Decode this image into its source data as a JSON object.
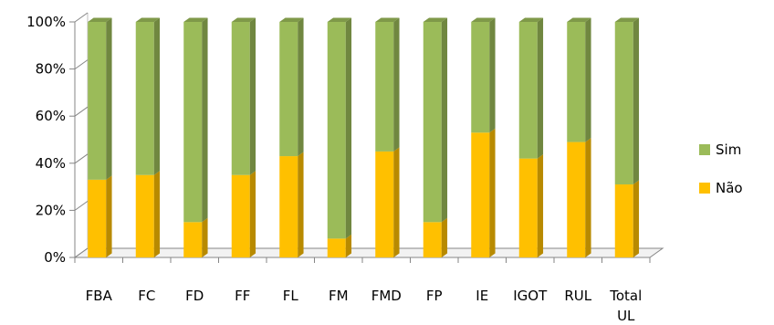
{
  "chart_data": {
    "type": "bar",
    "stacked": true,
    "percent": true,
    "style": "3d-column",
    "categories": [
      "FBA",
      "FC",
      "FD",
      "FF",
      "FL",
      "FM",
      "FMD",
      "FP",
      "IE",
      "IGOT",
      "RUL",
      "Total UL"
    ],
    "series": [
      {
        "name": "Não",
        "color": "#FFC000",
        "values": [
          33,
          35,
          15,
          35,
          43,
          8,
          45,
          15,
          53,
          42,
          49,
          31
        ]
      },
      {
        "name": "Sim",
        "color": "#9BBB59",
        "values": [
          67,
          65,
          85,
          65,
          57,
          92,
          55,
          85,
          47,
          58,
          51,
          69
        ]
      }
    ],
    "yticks": [
      "0%",
      "20%",
      "40%",
      "60%",
      "80%",
      "100%"
    ],
    "ylim": [
      0,
      100
    ],
    "legend": {
      "position": "right",
      "order": [
        "Sim",
        "Não"
      ]
    },
    "grid": false
  }
}
